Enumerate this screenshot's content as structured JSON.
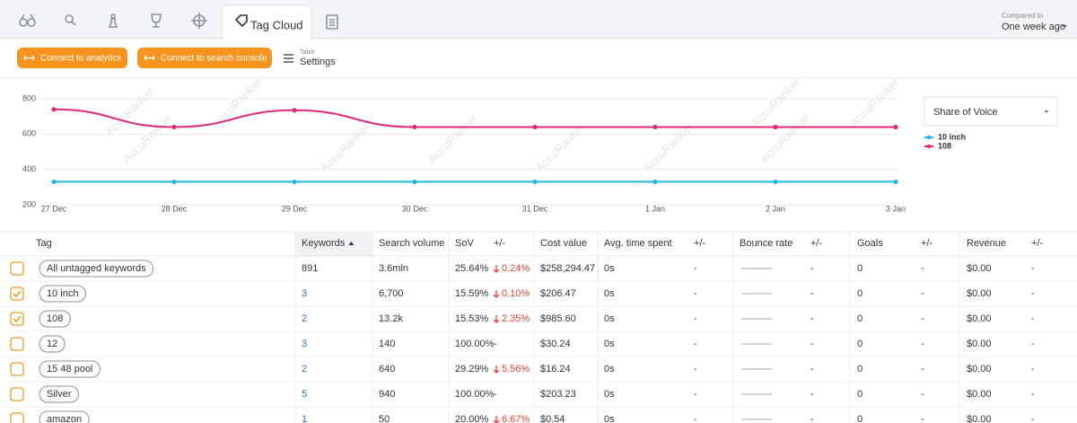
{
  "tabs": {
    "active": "Tag Cloud"
  },
  "compare": {
    "label": "Compared to",
    "value": "One week ago"
  },
  "toolbar": {
    "buttons": [
      "Connect to analytics",
      "Connect to search console"
    ],
    "settings": {
      "caption": "Table",
      "label": "Settings"
    }
  },
  "chart_data": {
    "type": "line",
    "x": [
      "27 Dec",
      "28 Dec",
      "29 Dec",
      "30 Dec",
      "31 Dec",
      "1 Jan",
      "2 Jan",
      "3 Jan"
    ],
    "series": [
      {
        "name": "10 inch",
        "color": "#1fb6d9",
        "values": [
          330,
          330,
          330,
          330,
          330,
          330,
          330,
          330
        ]
      },
      {
        "name": "108",
        "color": "#e0287a",
        "values": [
          740,
          640,
          735,
          640,
          640,
          640,
          640,
          640
        ]
      }
    ],
    "ylim": [
      200,
      800
    ],
    "yticks": [
      200,
      400,
      600,
      800
    ],
    "grid": true,
    "metric": "Share of Voice",
    "watermark": "AccuRanker"
  },
  "table": {
    "columns": {
      "tag": "Tag",
      "keywords": "Keywords",
      "search_volume": "Search volume",
      "sov": "SoV",
      "sov_change": "+/-",
      "cost_value": "Cost value",
      "avg_time": "Avg. time spent",
      "avg_time_change": "+/-",
      "bounce_rate": "Bounce rate",
      "bounce_change": "+/-",
      "goals": "Goals",
      "goals_change": "+/-",
      "revenue": "Revenue",
      "revenue_change": "+/-"
    },
    "sort_column": "keywords",
    "rows": [
      {
        "checked": false,
        "linked": false,
        "tag": "All untagged keywords",
        "keywords": "891",
        "search_volume": "3.6mln",
        "sov": "25.64%",
        "sov_change": "0.24%",
        "cost_value": "$258,294.47",
        "avg_time": "0s",
        "avg_time_change": "-",
        "bounce_change": "-",
        "goals": "0",
        "goals_change": "-",
        "revenue": "$0.00",
        "revenue_change": "-"
      },
      {
        "checked": true,
        "linked": true,
        "tag": "10 inch",
        "keywords": "3",
        "search_volume": "6,700",
        "sov": "15.59%",
        "sov_change": "0.10%",
        "cost_value": "$206.47",
        "avg_time": "0s",
        "avg_time_change": "-",
        "bounce_change": "-",
        "goals": "0",
        "goals_change": "-",
        "revenue": "$0.00",
        "revenue_change": "-"
      },
      {
        "checked": true,
        "linked": true,
        "tag": "108",
        "keywords": "2",
        "search_volume": "13.2k",
        "sov": "15.53%",
        "sov_change": "2.35%",
        "cost_value": "$985.60",
        "avg_time": "0s",
        "avg_time_change": "-",
        "bounce_change": "-",
        "goals": "0",
        "goals_change": "-",
        "revenue": "$0.00",
        "revenue_change": "-"
      },
      {
        "checked": false,
        "linked": true,
        "tag": "12",
        "keywords": "3",
        "search_volume": "140",
        "sov": "100.00%",
        "sov_change": "-",
        "cost_value": "$30.24",
        "avg_time": "0s",
        "avg_time_change": "-",
        "bounce_change": "-",
        "goals": "0",
        "goals_change": "-",
        "revenue": "$0.00",
        "revenue_change": "-"
      },
      {
        "checked": false,
        "linked": true,
        "tag": "15 48 pool",
        "keywords": "2",
        "search_volume": "640",
        "sov": "29.29%",
        "sov_change": "5.56%",
        "cost_value": "$16.24",
        "avg_time": "0s",
        "avg_time_change": "-",
        "bounce_change": "-",
        "goals": "0",
        "goals_change": "-",
        "revenue": "$0.00",
        "revenue_change": "-"
      },
      {
        "checked": false,
        "linked": true,
        "tag": "Silver",
        "keywords": "5",
        "search_volume": "940",
        "sov": "100.00%",
        "sov_change": "-",
        "cost_value": "$203.23",
        "avg_time": "0s",
        "avg_time_change": "-",
        "bounce_change": "-",
        "goals": "0",
        "goals_change": "-",
        "revenue": "$0.00",
        "revenue_change": "-"
      },
      {
        "checked": false,
        "linked": true,
        "tag": "amazon",
        "keywords": "1",
        "search_volume": "50",
        "sov": "20.00%",
        "sov_change": "6.67%",
        "cost_value": "$0.54",
        "avg_time": "0s",
        "avg_time_change": "-",
        "bounce_change": "-",
        "goals": "0",
        "goals_change": "-",
        "revenue": "$0.00",
        "revenue_change": "-"
      }
    ]
  }
}
